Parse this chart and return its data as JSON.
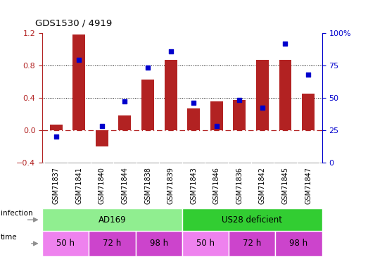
{
  "title": "GDS1530 / 4919",
  "samples": [
    "GSM71837",
    "GSM71841",
    "GSM71840",
    "GSM71844",
    "GSM71838",
    "GSM71839",
    "GSM71843",
    "GSM71846",
    "GSM71836",
    "GSM71842",
    "GSM71845",
    "GSM71847"
  ],
  "log2_ratio": [
    0.07,
    1.18,
    -0.2,
    0.18,
    0.62,
    0.87,
    0.27,
    0.35,
    0.37,
    0.87,
    0.87,
    0.45
  ],
  "percentile_rank": [
    20,
    79,
    28,
    47,
    73,
    86,
    46,
    28,
    48,
    42,
    92,
    68
  ],
  "bar_color": "#b22222",
  "dot_color": "#0000cc",
  "ylim_left": [
    -0.4,
    1.2
  ],
  "ylim_right": [
    0,
    100
  ],
  "yticks_left": [
    -0.4,
    0.0,
    0.4,
    0.8,
    1.2
  ],
  "yticks_right": [
    0,
    25,
    50,
    75,
    100
  ],
  "infection_labels": [
    "AD169",
    "US28 deficient"
  ],
  "infection_colors": [
    "#90ee90",
    "#32cd32"
  ],
  "time_labels": [
    "50 h",
    "72 h",
    "98 h",
    "50 h",
    "72 h",
    "98 h"
  ],
  "time_colors": [
    "#ee82ee",
    "#cc44cc",
    "#cc44cc",
    "#ee82ee",
    "#cc44cc",
    "#cc44cc"
  ],
  "bg_color": "#ffffff",
  "zero_line_color": "#b22222",
  "sample_bg_color": "#c8c8c8",
  "arrow_color": "#909090"
}
